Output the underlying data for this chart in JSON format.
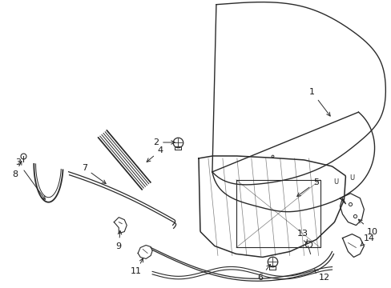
{
  "background_color": "#ffffff",
  "line_color": "#2a2a2a",
  "label_color": "#1a1a1a",
  "figsize": [
    4.89,
    3.6
  ],
  "dpi": 100
}
